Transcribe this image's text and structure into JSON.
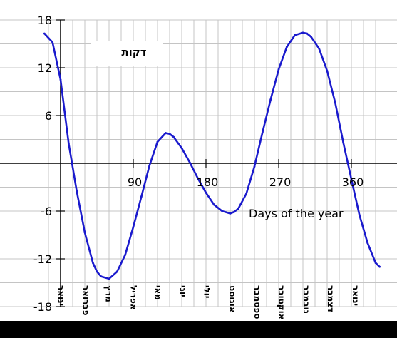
{
  "chart_data": {
    "type": "line",
    "ylabel": "דקות",
    "annotation": "Days of the year",
    "xlim": [
      -20,
      395
    ],
    "ylim": [
      -18,
      18
    ],
    "grid": true,
    "x_ticks": [
      90,
      180,
      270,
      360
    ],
    "y_ticks": [
      18,
      12,
      6,
      -6,
      -12,
      -18
    ],
    "x_tick_labels": [
      "90",
      "180",
      "270",
      "360"
    ],
    "y_tick_labels": [
      "18",
      "12",
      "6",
      "-6",
      "-12",
      "-18"
    ],
    "month_labels": [
      "ינואר",
      "פברואר",
      "מרץ",
      "אפריל",
      "מאי",
      "יוני",
      "יולי",
      "אוגוסט",
      "ספטמבר",
      "אוקטובר",
      "נובמבר",
      "דצמבר",
      "ינואר"
    ],
    "month_positions": [
      0,
      31,
      59,
      90,
      120,
      151,
      181,
      212,
      243,
      273,
      304,
      334,
      365
    ],
    "series": [
      {
        "color": "#1a1acd",
        "x": [
          -20,
          -10,
          0,
          10,
          20,
          30,
          40,
          45,
          50,
          60,
          70,
          80,
          90,
          100,
          110,
          120,
          130,
          135,
          140,
          150,
          160,
          170,
          180,
          190,
          200,
          210,
          215,
          220,
          230,
          240,
          250,
          260,
          270,
          280,
          290,
          300,
          305,
          310,
          320,
          330,
          340,
          350,
          360,
          370,
          380,
          390,
          395
        ],
        "y": [
          16.3,
          15.2,
          10.5,
          2.5,
          -3.5,
          -8.7,
          -12.5,
          -13.6,
          -14.2,
          -14.5,
          -13.6,
          -11.5,
          -8.0,
          -4.2,
          -0.3,
          2.7,
          3.8,
          3.7,
          3.3,
          1.9,
          0.1,
          -1.9,
          -3.7,
          -5.2,
          -6.0,
          -6.3,
          -6.1,
          -5.7,
          -3.8,
          -0.4,
          3.9,
          8.0,
          11.8,
          14.6,
          16.1,
          16.4,
          16.3,
          15.9,
          14.4,
          11.6,
          7.6,
          2.6,
          -2.0,
          -6.5,
          -10.0,
          -12.5,
          -13.0
        ]
      }
    ]
  }
}
